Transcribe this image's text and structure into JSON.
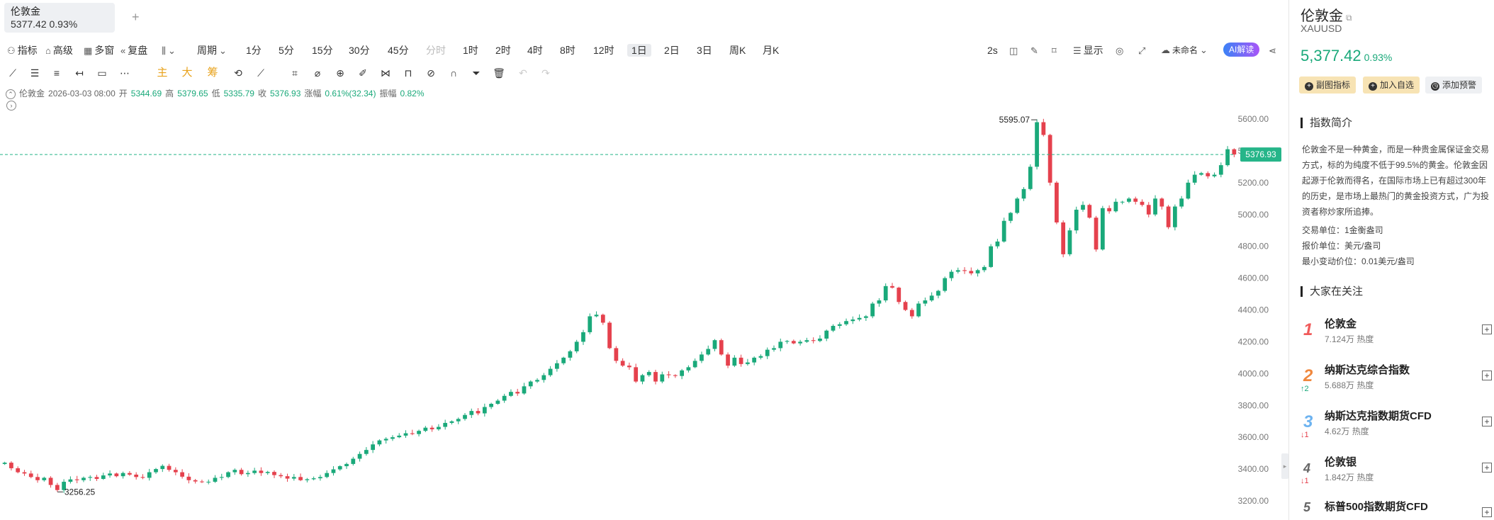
{
  "tab": {
    "name": "伦敦金",
    "price_line": "5377.42  0.93%",
    "add_label": "+"
  },
  "toolbar": {
    "indicator": "指标",
    "advanced": "高级",
    "multi": "多窗",
    "replay": "复盘",
    "period": "周期",
    "intervals": [
      {
        "label": "1分"
      },
      {
        "label": "5分"
      },
      {
        "label": "15分"
      },
      {
        "label": "30分"
      },
      {
        "label": "45分"
      },
      {
        "label": "分时"
      },
      {
        "label": "1时"
      },
      {
        "label": "2时"
      },
      {
        "label": "4时"
      },
      {
        "label": "8时"
      },
      {
        "label": "12时"
      },
      {
        "label": "1日"
      },
      {
        "label": "2日"
      },
      {
        "label": "3日"
      },
      {
        "label": "周K"
      },
      {
        "label": "月K"
      }
    ],
    "active_interval": "1日",
    "refresh": "2s",
    "display": "显示",
    "layout_name": "未命名",
    "ai_button": "AI解读"
  },
  "drawing_tools": {
    "main": "主",
    "big": "大",
    "chip": "筹"
  },
  "info": {
    "symbol": "伦敦金",
    "datetime": "2026-03-03 08:00",
    "open_label": "开",
    "open": "5344.69",
    "high_label": "高",
    "high": "5379.65",
    "low_label": "低",
    "low": "5335.79",
    "close_label": "收",
    "close": "5376.93",
    "change_label": "涨幅",
    "change": "0.61%(32.34)",
    "amp_label": "振幅",
    "amp": "0.82%"
  },
  "chart_data": {
    "type": "candlestick",
    "symbol": "XAUUSD",
    "yaxis_ticks": [
      3200,
      3400,
      3600,
      3800,
      4000,
      4200,
      4400,
      4600,
      4800,
      5000,
      5200,
      5400,
      5600
    ],
    "ylim": [
      3100,
      5700
    ],
    "current_price": 5376.93,
    "current_price_label": "5376.93",
    "max_marker": {
      "value": 5595.07,
      "label": "5595.07"
    },
    "min_marker": {
      "value": 3256.25,
      "label": "3256.25"
    },
    "colors": {
      "up": "#1aa97a",
      "down": "#e5414d",
      "last": "#26b589"
    },
    "close_series": [
      3440,
      3405,
      3380,
      3372,
      3350,
      3330,
      3345,
      3300,
      3268,
      3320,
      3335,
      3330,
      3345,
      3350,
      3338,
      3360,
      3372,
      3355,
      3375,
      3365,
      3350,
      3345,
      3380,
      3400,
      3420,
      3395,
      3380,
      3352,
      3330,
      3322,
      3318,
      3320,
      3345,
      3350,
      3380,
      3395,
      3368,
      3375,
      3390,
      3375,
      3382,
      3362,
      3355,
      3340,
      3350,
      3330,
      3336,
      3342,
      3350,
      3375,
      3398,
      3418,
      3432,
      3465,
      3495,
      3520,
      3555,
      3580,
      3590,
      3600,
      3610,
      3625,
      3620,
      3640,
      3660,
      3650,
      3665,
      3690,
      3700,
      3715,
      3740,
      3765,
      3750,
      3790,
      3810,
      3830,
      3860,
      3885,
      3875,
      3920,
      3950,
      3960,
      3990,
      4030,
      4065,
      4100,
      4140,
      4200,
      4260,
      4360,
      4370,
      4320,
      4160,
      4080,
      4050,
      4040,
      3950,
      3990,
      4010,
      3950,
      3995,
      3990,
      3985,
      4020,
      4040,
      4080,
      4120,
      4155,
      4210,
      4120,
      4050,
      4100,
      4060,
      4070,
      4100,
      4110,
      4150,
      4160,
      4200,
      4205,
      4190,
      4200,
      4210,
      4205,
      4220,
      4270,
      4300,
      4310,
      4330,
      4340,
      4350,
      4360,
      4440,
      4460,
      4550,
      4540,
      4450,
      4400,
      4360,
      4440,
      4460,
      4490,
      4520,
      4600,
      4640,
      4650,
      4645,
      4630,
      4650,
      4670,
      4800,
      4830,
      4960,
      5010,
      5100,
      5160,
      5300,
      5580,
      5500,
      5200,
      4950,
      4750,
      4900,
      5030,
      5060,
      4980,
      4780,
      5040,
      5020,
      5080,
      5080,
      5100,
      5080,
      5060,
      5000,
      5100,
      5050,
      4920,
      5050,
      5100,
      5200,
      5250,
      5260,
      5240,
      5250,
      5310,
      5410,
      5377
    ]
  },
  "side": {
    "title": "伦敦金",
    "code": "XAUUSD",
    "price": "5,377.42",
    "change": "0.93%",
    "btn_sub": "副图指标",
    "btn_watch": "加入自选",
    "btn_alert": "添加预警",
    "intro_title": "指数简介",
    "intro_text": "伦敦金不是一种黄金，而是一种贵金属保证金交易方式，标的为纯度不低于99.5%的黄金。伦敦金因起源于伦敦而得名，在国际市场上已有超过300年的历史，是市场上最热门的黄金投资方式，广为投资者称炒家所追捧。",
    "unit": "交易单位：1金衡盎司",
    "quote_unit": "报价单位：美元/盎司",
    "tick": "最小变动价位：0.01美元/盎司",
    "hot_title": "大家在关注",
    "hot": [
      {
        "rank": "1",
        "name": "伦敦金",
        "value": "7.124万 热度",
        "move": ""
      },
      {
        "rank": "2",
        "name": "纳斯达克综合指数",
        "value": "5.688万 热度",
        "move": "↑2"
      },
      {
        "rank": "3",
        "name": "纳斯达克指数期货CFD",
        "value": "4.62万 热度",
        "move": "↓1"
      },
      {
        "rank": "4",
        "name": "伦敦银",
        "value": "1.842万 热度",
        "move": "↓1"
      },
      {
        "rank": "5",
        "name": "标普500指数期货CFD",
        "value": "",
        "move": ""
      }
    ]
  }
}
